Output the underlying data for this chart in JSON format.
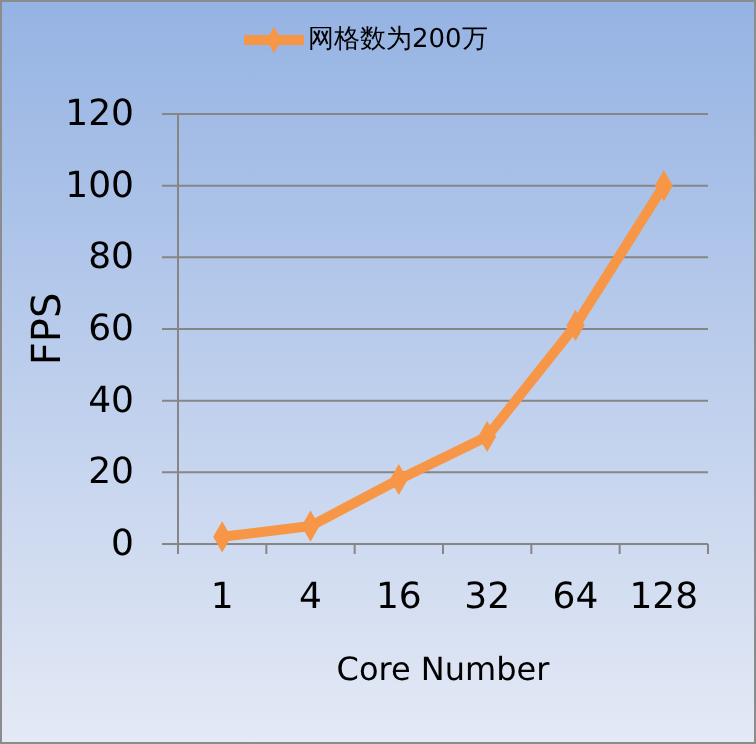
{
  "chart_data": {
    "type": "line",
    "xlabel": "Core Number",
    "ylabel": "FPS",
    "categories": [
      "1",
      "4",
      "16",
      "32",
      "64",
      "128"
    ],
    "series": [
      {
        "name": "网格数为200万",
        "color": "#f79646",
        "values": [
          2,
          5,
          18,
          30,
          61,
          100
        ]
      }
    ],
    "ylim": [
      0,
      120
    ],
    "yticks": [
      0,
      20,
      40,
      60,
      80,
      100,
      120
    ],
    "grid": "y",
    "legend": "top",
    "marker": "diamond",
    "line_style": "solid"
  }
}
